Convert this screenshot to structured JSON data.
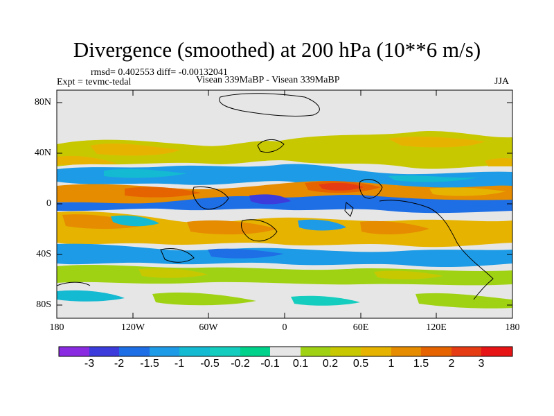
{
  "title": "Divergence (smoothed) at 200 hPa (10**6 m/s)",
  "stats": "rmsd= 0.402553 diff= -0.00132041",
  "experiment": "Expt = tevmc-tedal",
  "comparison": "Visean 339MaBP - Visean 339MaBP",
  "season": "JJA",
  "y_axis_labels": [
    "80N",
    "40N",
    "0",
    "40S",
    "80S"
  ],
  "x_axis_labels": [
    "180",
    "120W",
    "60W",
    "0",
    "60E",
    "120E",
    "180"
  ],
  "colorbar": {
    "colors": [
      "#8a2be2",
      "#3c3cdc",
      "#1e6ee6",
      "#1e9be6",
      "#14b9d2",
      "#14cdbe",
      "#00d28c",
      "#e6e6e6",
      "#a0d214",
      "#c8c800",
      "#e6b400",
      "#e68c00",
      "#e66400",
      "#e63c14",
      "#e61414"
    ],
    "labels": [
      "-3",
      "-2",
      "-1.5",
      "-1",
      "-0.5",
      "-0.2",
      "-0.1",
      "0.1",
      "0.2",
      "0.5",
      "1",
      "1.5",
      "2",
      "3"
    ]
  }
}
